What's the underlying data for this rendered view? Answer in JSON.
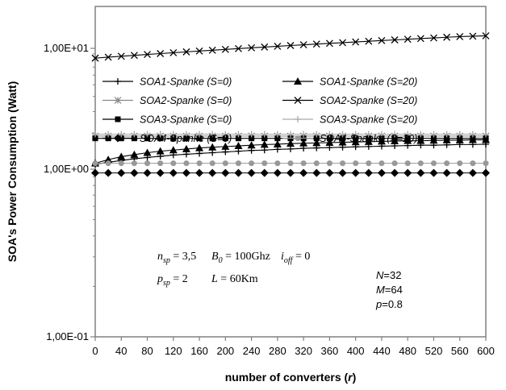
{
  "chart_data": {
    "type": "line",
    "xlabel": "number of converters (r)",
    "ylabel": "SOA's Power Consumption (Watt)",
    "yscale": "log",
    "xlim": [
      0,
      600
    ],
    "ylim": [
      0.1,
      20
    ],
    "xticks": [
      "0",
      "40",
      "80",
      "120",
      "160",
      "200",
      "240",
      "280",
      "320",
      "360",
      "400",
      "440",
      "480",
      "520",
      "560",
      "600"
    ],
    "yticks": [
      {
        "value": 10,
        "label": "1,00E+01"
      },
      {
        "value": 1,
        "label": "1,00E+00"
      },
      {
        "value": 0.1,
        "label": "1,00E-01"
      }
    ],
    "grid": false,
    "legend_position": "inside-top",
    "x": [
      0,
      20,
      40,
      60,
      80,
      100,
      120,
      140,
      160,
      180,
      200,
      220,
      240,
      260,
      280,
      300,
      320,
      340,
      360,
      380,
      400,
      420,
      440,
      460,
      480,
      500,
      520,
      540,
      560,
      580,
      600
    ],
    "series": [
      {
        "name": "SOA1-Spanke (S=0)",
        "marker": "plus",
        "color": "#000000",
        "values": [
          1.1,
          1.14,
          1.18,
          1.22,
          1.25,
          1.28,
          1.31,
          1.33,
          1.35,
          1.37,
          1.39,
          1.41,
          1.43,
          1.44,
          1.46,
          1.47,
          1.49,
          1.5,
          1.51,
          1.52,
          1.53,
          1.54,
          1.55,
          1.56,
          1.57,
          1.58,
          1.58,
          1.59,
          1.6,
          1.6,
          1.61
        ]
      },
      {
        "name": "SOA1-Spanke (S=20)",
        "marker": "triangle",
        "color": "#000000",
        "values": [
          1.12,
          1.2,
          1.27,
          1.32,
          1.37,
          1.41,
          1.44,
          1.47,
          1.5,
          1.52,
          1.54,
          1.56,
          1.58,
          1.6,
          1.61,
          1.63,
          1.64,
          1.65,
          1.66,
          1.67,
          1.68,
          1.69,
          1.7,
          1.71,
          1.72,
          1.72,
          1.73,
          1.74,
          1.74,
          1.75,
          1.75
        ]
      },
      {
        "name": "SOA2-Spanke (S=0)",
        "marker": "asterisk",
        "color": "#888888",
        "values": [
          1.88,
          1.88,
          1.88,
          1.88,
          1.88,
          1.88,
          1.88,
          1.88,
          1.88,
          1.88,
          1.88,
          1.88,
          1.88,
          1.88,
          1.88,
          1.88,
          1.88,
          1.88,
          1.88,
          1.88,
          1.88,
          1.88,
          1.88,
          1.88,
          1.88,
          1.88,
          1.88,
          1.88,
          1.88,
          1.88,
          1.88
        ]
      },
      {
        "name": "SOA2-Spanke (S=20)",
        "marker": "cross",
        "color": "#000000",
        "values": [
          8.3,
          8.45,
          8.6,
          8.75,
          8.9,
          9.05,
          9.2,
          9.35,
          9.5,
          9.65,
          9.8,
          9.95,
          10.1,
          10.25,
          10.4,
          10.55,
          10.7,
          10.85,
          11.0,
          11.15,
          11.3,
          11.45,
          11.6,
          11.75,
          11.9,
          12.05,
          12.2,
          12.35,
          12.5,
          12.6,
          12.7
        ]
      },
      {
        "name": "SOA3-Spanke (S=0)",
        "marker": "square",
        "color": "#000000",
        "values": [
          1.8,
          1.8,
          1.8,
          1.8,
          1.8,
          1.8,
          1.8,
          1.8,
          1.8,
          1.8,
          1.8,
          1.8,
          1.8,
          1.8,
          1.8,
          1.8,
          1.8,
          1.8,
          1.8,
          1.8,
          1.8,
          1.8,
          1.8,
          1.8,
          1.8,
          1.8,
          1.8,
          1.8,
          1.8,
          1.8,
          1.8
        ]
      },
      {
        "name": "SOA3-Spanke (S=20)",
        "marker": "plus",
        "color": "#aaaaaa",
        "values": [
          1.95,
          1.95,
          1.95,
          1.95,
          1.95,
          1.95,
          1.95,
          1.95,
          1.95,
          1.95,
          1.95,
          1.95,
          1.95,
          1.95,
          1.95,
          1.95,
          1.95,
          1.95,
          1.95,
          1.95,
          1.95,
          1.95,
          1.95,
          1.95,
          1.95,
          1.95,
          1.95,
          1.95,
          1.95,
          1.95,
          1.95
        ]
      },
      {
        "name": "SOA4-Spanke (S=0)",
        "marker": "diamond",
        "color": "#000000",
        "values": [
          0.95,
          0.95,
          0.95,
          0.95,
          0.95,
          0.95,
          0.95,
          0.95,
          0.95,
          0.95,
          0.95,
          0.95,
          0.95,
          0.95,
          0.95,
          0.95,
          0.95,
          0.95,
          0.95,
          0.95,
          0.95,
          0.95,
          0.95,
          0.95,
          0.95,
          0.95,
          0.95,
          0.95,
          0.95,
          0.95,
          0.95
        ]
      },
      {
        "name": "SOA4-Spanke (S=20)",
        "marker": "circle",
        "color": "#999999",
        "values": [
          1.12,
          1.12,
          1.12,
          1.12,
          1.12,
          1.12,
          1.12,
          1.12,
          1.12,
          1.12,
          1.12,
          1.12,
          1.12,
          1.12,
          1.12,
          1.12,
          1.12,
          1.12,
          1.12,
          1.12,
          1.12,
          1.12,
          1.12,
          1.12,
          1.12,
          1.12,
          1.12,
          1.12,
          1.12,
          1.12,
          1.12
        ]
      }
    ],
    "annotations": {
      "params_line1": [
        {
          "sym": "n",
          "sub": "sp",
          "rest": " = 3,5"
        },
        {
          "sym": "B",
          "sub": "0",
          "rest": " = 100Ghz"
        },
        {
          "sym": "i",
          "sub": "off",
          "rest": " = 0"
        }
      ],
      "params_line2": [
        {
          "sym": "p",
          "sub": "sp",
          "rest": " = 2"
        },
        {
          "sym": "L",
          "sub": "",
          "rest": " = 60Km"
        }
      ],
      "switch_params": [
        {
          "sym": "N",
          "rest": "=32"
        },
        {
          "sym": "M",
          "rest": "=64"
        },
        {
          "sym": "p",
          "rest": "=0.8"
        }
      ]
    }
  }
}
